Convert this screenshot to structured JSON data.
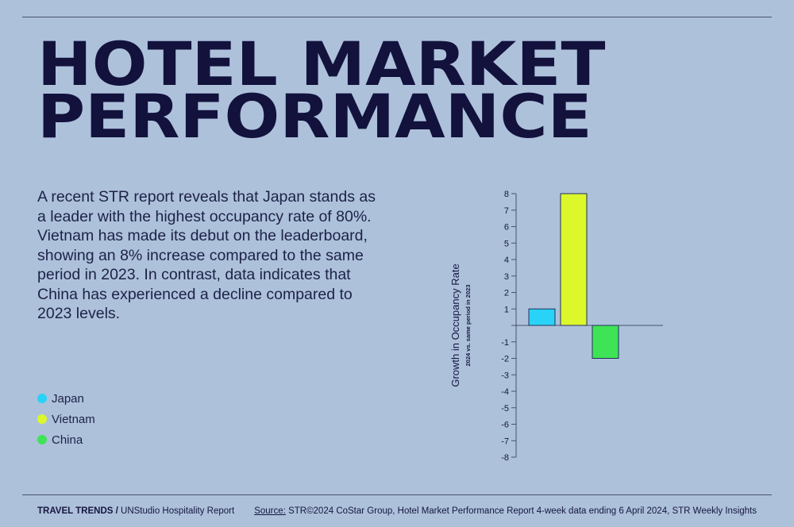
{
  "title": {
    "line1": "HOTEL MARKET",
    "line2": "PERFORMANCE"
  },
  "body": "A recent STR report reveals that Japan stands as a leader with the highest occupancy rate of 80%. Vietnam has made its debut on the leaderboard, showing an 8% increase compared to the same period in 2023. In contrast, data indicates that China has experienced a decline compared to 2023 levels.",
  "legend": [
    {
      "label": "Japan",
      "color": "#28d3f7"
    },
    {
      "label": "Vietnam",
      "color": "#dcf82a"
    },
    {
      "label": "China",
      "color": "#3ee455"
    }
  ],
  "footer": {
    "brand": "TRAVEL TRENDS /",
    "report": "UNStudio Hospitality Report",
    "source_label": "Source:",
    "source_text": "STR©2024 CoStar Group, Hotel Market Performance Report 4-week data ending 6 April 2024, STR Weekly Insights"
  },
  "chart_data": {
    "type": "bar",
    "categories": [
      "Japan",
      "Vietnam",
      "China"
    ],
    "values": [
      1,
      8,
      -2
    ],
    "colors": [
      "#28d3f7",
      "#dcf82a",
      "#3ee455"
    ],
    "ylabel": "Growth in Occupancy Rate",
    "ylabel_sub": "2024 vs. same period in 2023",
    "ylim": [
      -8,
      8
    ],
    "yticks": [
      "8",
      "7",
      "6",
      "5",
      "4",
      "3",
      "2",
      "1",
      "",
      "-1",
      "-2",
      "-3",
      "-4",
      "-5",
      "-6",
      "-7",
      "-8"
    ],
    "grid": false,
    "legend": "left"
  }
}
